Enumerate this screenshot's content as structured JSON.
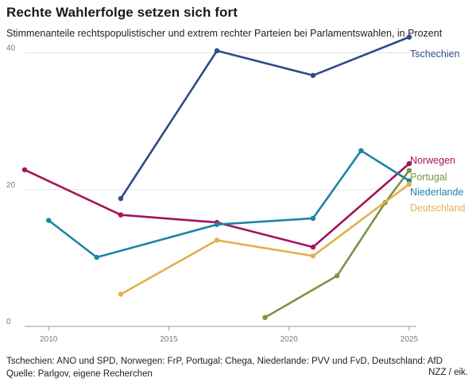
{
  "title": "Rechte Wahlerfolge setzen sich fort",
  "subtitle": "Stimmenanteile rechtspopulistischer und extrem rechter Parteien bei Parlamentswahlen, in Prozent",
  "footer": {
    "note": "Tschechien: ANO und SPD, Norwegen: FrP, Portugal: Chega, Niederlande: PVV und FvD, Deutschland: AfD",
    "source": "Quelle: Parlgov, eigene Recherchen",
    "credit": "NZZ / eik."
  },
  "colors": {
    "Tschechien": "#2f4b8a",
    "Norwegen": "#a3135a",
    "Portugal": "#7d9440",
    "Niederlande": "#1b84a5",
    "Deutschland": "#e3b04b",
    "grid": "#e3e3e3",
    "axis": "#9a9a9a"
  },
  "chart_data": {
    "type": "line",
    "title": "Rechte Wahlerfolge setzen sich fort",
    "xlabel": "",
    "ylabel": "",
    "xlim": [
      2009,
      2025.3
    ],
    "ylim": [
      0,
      42.5
    ],
    "xticks": [
      2010,
      2015,
      2020,
      2025
    ],
    "yticks": [
      0,
      20,
      40
    ],
    "grid": "horizontal",
    "series": [
      {
        "name": "Tschechien",
        "x": [
          2013,
          2017,
          2021,
          2025
        ],
        "y": [
          18.7,
          40.3,
          36.7,
          42.3
        ]
      },
      {
        "name": "Norwegen",
        "x": [
          2009,
          2013,
          2017,
          2021,
          2025
        ],
        "y": [
          22.9,
          16.3,
          15.2,
          11.6,
          23.8
        ]
      },
      {
        "name": "Portugal",
        "x": [
          2019,
          2022,
          2024,
          2025
        ],
        "y": [
          1.3,
          7.4,
          18.1,
          22.8
        ]
      },
      {
        "name": "Niederlande",
        "x": [
          2010,
          2012,
          2017,
          2021,
          2023,
          2025
        ],
        "y": [
          15.5,
          10.1,
          14.9,
          15.8,
          25.7,
          21.3
        ]
      },
      {
        "name": "Deutschland",
        "x": [
          2013,
          2017,
          2021,
          2025
        ],
        "y": [
          4.7,
          12.6,
          10.3,
          20.8
        ]
      }
    ]
  }
}
